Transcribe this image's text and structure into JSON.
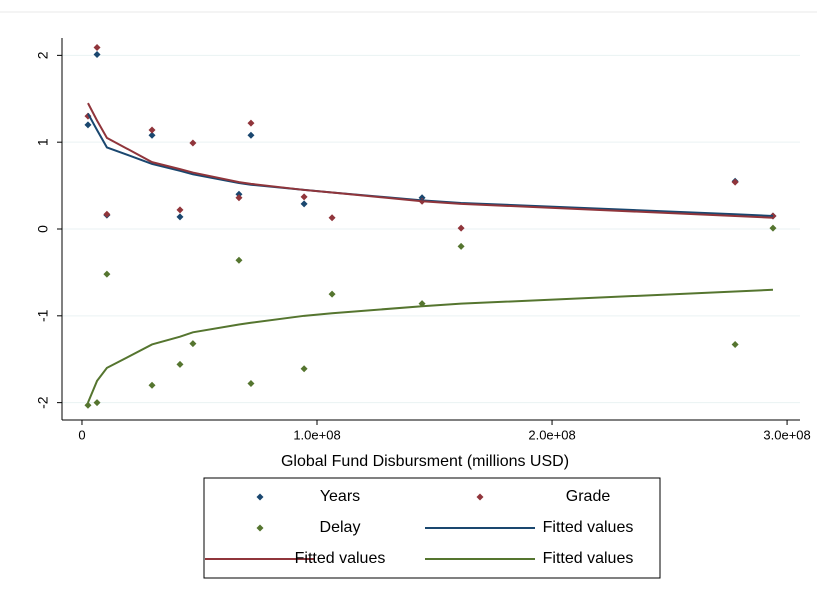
{
  "chart_data": {
    "type": "scatter",
    "xlabel": "Global Fund Disbursment  (millions USD)",
    "x": [
      2550000,
      6400000,
      10600000,
      29800000,
      41700000,
      47200000,
      66800000,
      71900000,
      94500000,
      106400000,
      144700000,
      161300000,
      277900000,
      294000000
    ],
    "series": [
      {
        "name": "Years",
        "type": "scatter",
        "color": "#1a476f",
        "values": [
          1.2,
          2.01,
          0.16,
          1.08,
          0.14,
          null,
          0.4,
          1.08,
          0.29,
          null,
          0.36,
          null,
          0.55,
          0.15
        ]
      },
      {
        "name": "Grade",
        "type": "scatter",
        "color": "#90353b",
        "values": [
          1.3,
          2.09,
          0.17,
          1.14,
          0.22,
          0.99,
          0.36,
          1.22,
          0.37,
          0.13,
          0.32,
          0.01,
          0.54,
          0.15
        ]
      },
      {
        "name": "Delay",
        "type": "scatter",
        "color": "#55752f",
        "values": [
          -2.03,
          -2.0,
          -0.52,
          -1.8,
          -1.56,
          -1.32,
          -0.36,
          -1.78,
          -1.61,
          -0.75,
          -0.86,
          -0.2,
          -1.33,
          0.01
        ]
      },
      {
        "name": "Fitted values",
        "type": "line",
        "color": "#1a476f",
        "values": [
          1.33,
          1.14,
          0.94,
          0.75,
          0.67,
          0.63,
          0.53,
          0.51,
          0.45,
          0.42,
          0.33,
          0.3,
          0.17,
          0.15
        ]
      },
      {
        "name": "Fitted values",
        "type": "line",
        "color": "#90353b",
        "values": [
          1.45,
          1.25,
          1.05,
          0.77,
          0.69,
          0.65,
          0.54,
          0.52,
          0.45,
          0.42,
          0.32,
          0.29,
          0.15,
          0.13
        ]
      },
      {
        "name": "Fitted values",
        "type": "line",
        "color": "#55752f",
        "values": [
          -2.0,
          -1.75,
          -1.6,
          -1.33,
          -1.24,
          -1.19,
          -1.1,
          -1.08,
          -1.0,
          -0.97,
          -0.89,
          -0.86,
          -0.72,
          -0.7
        ]
      }
    ],
    "xlim": [
      -8500000,
      305500000
    ],
    "xticks": [
      0,
      {
        "value": 100000000,
        "label": "1.0e+08"
      },
      {
        "value": 200000000,
        "label": "2.0e+08"
      },
      {
        "value": 300000000,
        "label": "3.0e+08"
      }
    ],
    "ylim": [
      -2.2,
      2.2
    ],
    "yticks": [
      -2,
      -1,
      0,
      1,
      2
    ],
    "grid": true
  }
}
